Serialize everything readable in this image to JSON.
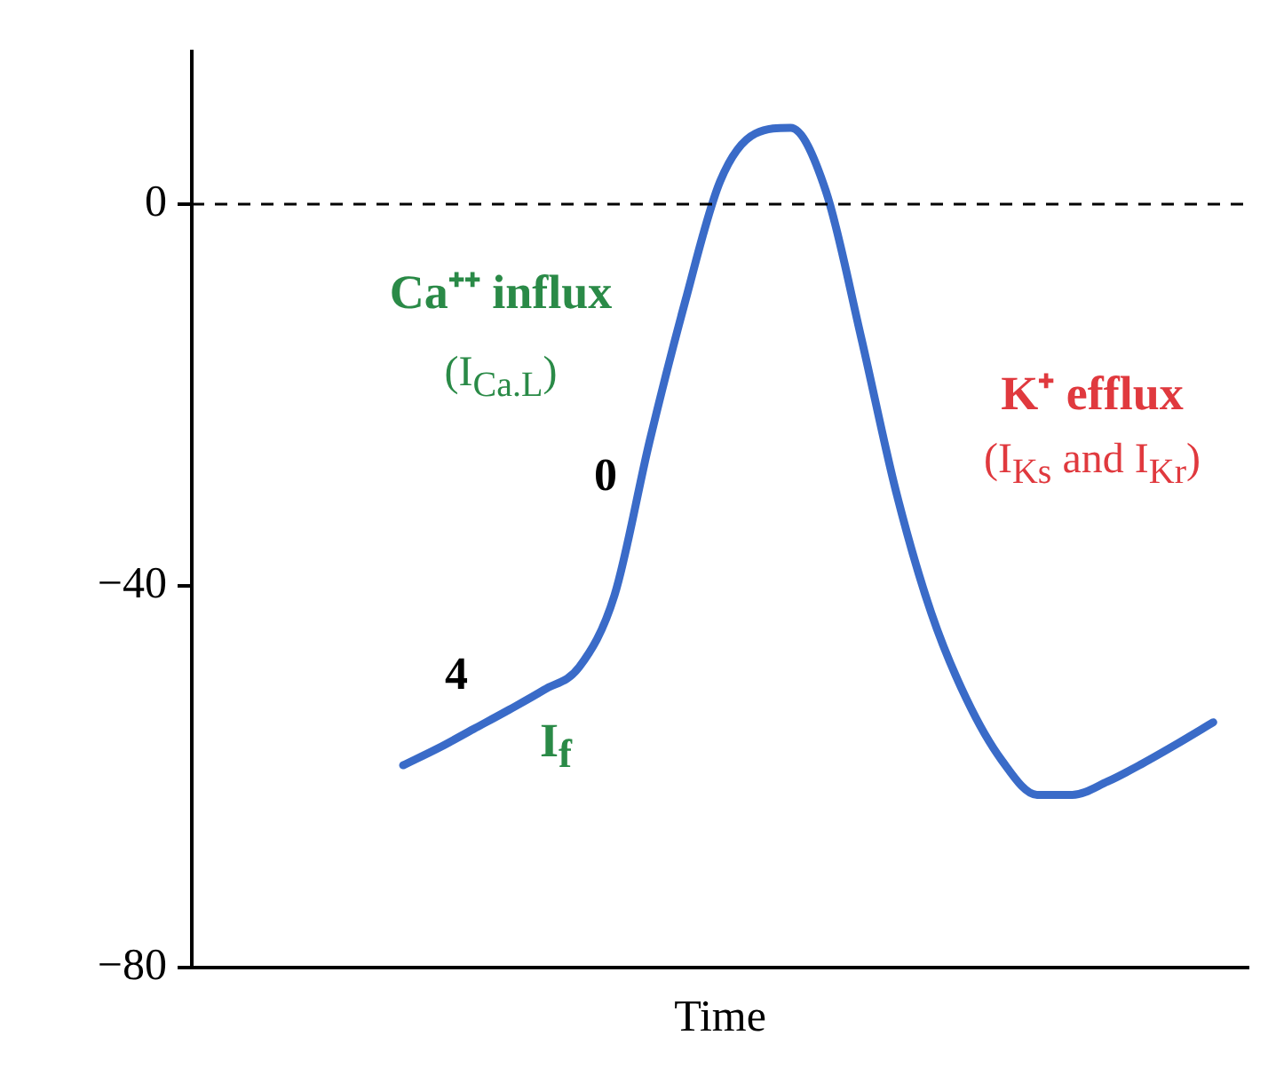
{
  "chart_data": {
    "type": "line",
    "xlabel": "Time",
    "categories": [
      null,
      null,
      null,
      null,
      null,
      null,
      null,
      null,
      null,
      null,
      null,
      null,
      null,
      null,
      null,
      null,
      null,
      null,
      null,
      null,
      null,
      null,
      null,
      null,
      null,
      null,
      null,
      null,
      null,
      null,
      null
    ],
    "series": [
      {
        "color": "#3a6bc8",
        "values": [
          null,
          null,
          null,
          null,
          null,
          null,
          -58.8,
          -57,
          -55,
          -53,
          -50.9,
          -48.5,
          -41,
          -24.8,
          -10.3,
          2.4,
          7.4,
          8,
          1.4,
          -13.9,
          -30.2,
          -42.9,
          -51.9,
          -58.3,
          -61.9,
          -61.9,
          -60.5,
          -58.6,
          -56.5,
          -54.3,
          null
        ]
      }
    ],
    "ylim": [
      -80,
      16
    ],
    "yticks": [
      0,
      -40,
      -80
    ],
    "ref_lines": [
      {
        "axis": "y",
        "value": 0,
        "line_style": "dashed",
        "color": "#000000"
      }
    ],
    "annotations": [
      "Ca⁺⁺ influx",
      "(I$_{Ca.L}$)",
      "0",
      "4",
      "I$_{f}$",
      "K⁺ efflux",
      "(I$_{Ks}$ and I$_{Kr}$)"
    ],
    "grid": false,
    "legend": false,
    "marker": "none",
    "line_style": "solid"
  }
}
